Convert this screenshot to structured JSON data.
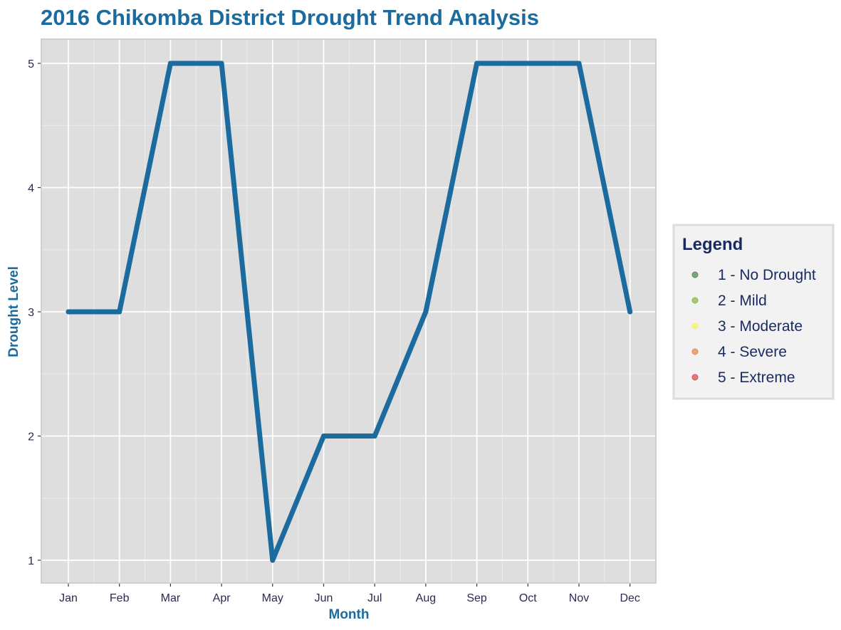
{
  "chart_data": {
    "type": "line",
    "title": "2016 Chikomba District Drought Trend Analysis",
    "xlabel": "Month",
    "ylabel": "Drought Level",
    "categories": [
      "Jan",
      "Feb",
      "Mar",
      "Apr",
      "May",
      "Jun",
      "Jul",
      "Aug",
      "Sep",
      "Oct",
      "Nov",
      "Dec"
    ],
    "series": [
      {
        "values": [
          3,
          3,
          5,
          5,
          1,
          2,
          2,
          3,
          5,
          5,
          5,
          3
        ]
      }
    ],
    "ylim": [
      0.83,
      5.17
    ],
    "yticks": [
      1,
      2,
      3,
      4,
      5
    ],
    "grid": true,
    "legend_position": "right",
    "legend": {
      "title": "Legend",
      "items": [
        {
          "label": "1 - No Drought",
          "color": "#4d8c57"
        },
        {
          "label": "2 - Mild",
          "color": "#8fb84a"
        },
        {
          "label": "3 - Moderate",
          "color": "#f4f466"
        },
        {
          "label": "4 - Severe",
          "color": "#e58a5a"
        },
        {
          "label": "5 - Extreme",
          "color": "#d9534f"
        }
      ]
    }
  },
  "colors": {
    "accent": "#1b6b9e",
    "panel": "#dedede",
    "legend_text": "#1b2a5e",
    "tick_text": "#2b2b4f"
  }
}
